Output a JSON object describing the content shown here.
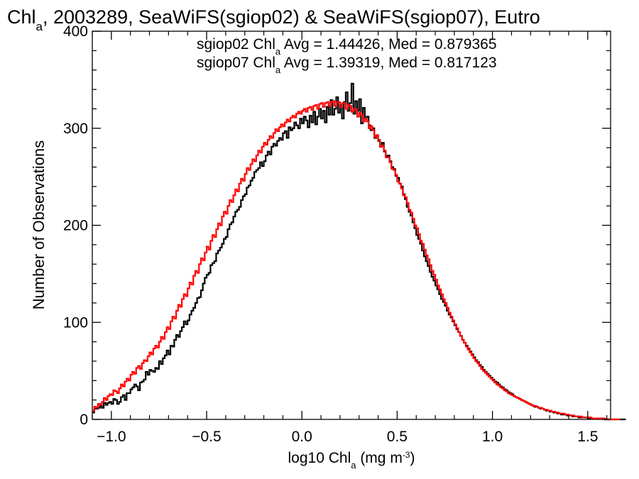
{
  "chart_data": {
    "type": "line",
    "title_parts": [
      "Chl",
      "a",
      ", 2003289, SeaWiFS(sgiop02) & SeaWiFS(sgiop07), Eutro"
    ],
    "xlabel_parts": [
      "log10 Chl",
      "a",
      " (mg m",
      "-3",
      ")"
    ],
    "ylabel": "Number of Observations",
    "xlim": [
      -1.1,
      1.62
    ],
    "ylim": [
      0,
      400
    ],
    "x_ticks": [
      "−1.0",
      "−0.5",
      "0.0",
      "0.5",
      "1.0",
      "1.5"
    ],
    "x_tick_values": [
      -1.0,
      -0.5,
      0.0,
      0.5,
      1.0,
      1.5
    ],
    "y_ticks": [
      "0",
      "100",
      "200",
      "300",
      "400"
    ],
    "y_tick_values": [
      0,
      100,
      200,
      300,
      400
    ],
    "grid": false,
    "annotations": [
      {
        "parts": [
          "sgiop02 Chl",
          "a",
          " Avg = 1.44426, Med = 0.879365"
        ],
        "color": "#000000"
      },
      {
        "parts": [
          "sgiop07 Chl",
          "a",
          " Avg = 1.39319, Med = 0.817123"
        ],
        "color": "#ff0000"
      }
    ],
    "bin_width": 0.01,
    "x_start": -1.1,
    "series": [
      {
        "name": "sgiop02",
        "color": "#000000",
        "values": [
          7,
          11,
          11,
          12,
          14,
          12,
          17,
          15,
          17,
          18,
          16,
          21,
          20,
          16,
          18,
          23,
          25,
          20,
          27,
          27,
          31,
          33,
          36,
          34,
          30,
          38,
          39,
          41,
          49,
          46,
          51,
          50,
          49,
          53,
          52,
          60,
          57,
          63,
          66,
          71,
          67,
          76,
          75,
          82,
          87,
          85,
          91,
          95,
          101,
          98,
          102,
          108,
          112,
          115,
          120,
          125,
          126,
          133,
          140,
          146,
          149,
          151,
          159,
          161,
          163,
          171,
          174,
          177,
          181,
          186,
          188,
          196,
          201,
          203,
          209,
          214,
          216,
          219,
          226,
          230,
          232,
          239,
          241,
          246,
          249,
          255,
          257,
          259,
          265,
          261,
          266,
          272,
          276,
          273,
          281,
          284,
          282,
          287,
          290,
          288,
          295,
          297,
          290,
          301,
          298,
          300,
          306,
          303,
          300,
          310,
          305,
          312,
          308,
          301,
          313,
          306,
          317,
          304,
          312,
          320,
          310,
          318,
          306,
          322,
          314,
          329,
          314,
          320,
          332,
          316,
          324,
          310,
          327,
          337,
          318,
          326,
          346,
          315,
          328,
          318,
          330,
          305,
          321,
          310,
          312,
          303,
          298,
          300,
          290,
          292,
          287,
          281,
          285,
          276,
          271,
          272,
          266,
          260,
          258,
          251,
          249,
          243,
          240,
          232,
          227,
          219,
          214,
          210,
          203,
          197,
          190,
          186,
          181,
          174,
          168,
          163,
          158,
          152,
          147,
          143,
          138,
          134,
          129,
          124,
          121,
          117,
          112,
          108,
          105,
          101,
          97,
          93,
          90,
          86,
          82,
          79,
          76,
          73,
          70,
          67,
          64,
          61,
          59,
          56,
          54,
          51,
          49,
          47,
          45,
          43,
          41,
          39,
          38,
          36,
          34,
          33,
          31,
          30,
          28,
          27,
          26,
          24,
          23,
          22,
          21,
          20,
          19,
          18,
          17,
          16,
          15,
          14,
          13,
          13,
          12,
          11,
          11,
          10,
          9,
          9,
          8,
          8,
          7,
          7,
          6,
          6,
          5,
          5,
          5,
          4,
          4,
          4,
          3,
          3,
          3,
          2,
          2,
          2,
          2,
          2,
          1,
          1,
          1,
          1,
          1,
          1,
          1,
          1,
          1,
          0,
          0,
          0,
          0,
          0,
          0,
          0,
          0,
          0,
          0,
          0
        ]
      },
      {
        "name": "sgiop07",
        "color": "#ff0000",
        "values": [
          9,
          13,
          12,
          16,
          15,
          18,
          22,
          20,
          24,
          26,
          25,
          30,
          29,
          27,
          32,
          36,
          34,
          39,
          42,
          40,
          46,
          49,
          47,
          53,
          55,
          52,
          58,
          61,
          60,
          65,
          69,
          67,
          73,
          76,
          74,
          80,
          85,
          83,
          90,
          95,
          93,
          101,
          106,
          104,
          112,
          118,
          116,
          124,
          129,
          127,
          135,
          141,
          139,
          148,
          153,
          151,
          160,
          166,
          164,
          172,
          178,
          175,
          184,
          190,
          188,
          196,
          202,
          200,
          209,
          214,
          212,
          220,
          226,
          224,
          231,
          237,
          235,
          243,
          248,
          246,
          253,
          259,
          257,
          263,
          268,
          266,
          272,
          277,
          275,
          281,
          285,
          283,
          288,
          292,
          290,
          295,
          299,
          297,
          301,
          304,
          302,
          306,
          309,
          307,
          311,
          313,
          311,
          315,
          317,
          315,
          318,
          320,
          317,
          321,
          322,
          319,
          323,
          324,
          320,
          325,
          326,
          322,
          326,
          327,
          323,
          327,
          328,
          323,
          327,
          327,
          322,
          326,
          326,
          320,
          324,
          323,
          317,
          320,
          319,
          312,
          316,
          314,
          307,
          310,
          307,
          300,
          302,
          298,
          291,
          293,
          288,
          281,
          282,
          277,
          270,
          270,
          265,
          258,
          257,
          252,
          245,
          243,
          238,
          231,
          229,
          223,
          216,
          213,
          207,
          200,
          197,
          191,
          184,
          181,
          175,
          169,
          165,
          159,
          153,
          149,
          144,
          138,
          134,
          129,
          124,
          120,
          115,
          110,
          106,
          102,
          98,
          94,
          90,
          86,
          82,
          79,
          75,
          72,
          69,
          66,
          63,
          60,
          58,
          55,
          52,
          50,
          48,
          46,
          44,
          42,
          40,
          38,
          36,
          35,
          33,
          32,
          30,
          29,
          27,
          26,
          25,
          24,
          23,
          22,
          21,
          20,
          19,
          18,
          17,
          16,
          15,
          14,
          14,
          13,
          12,
          12,
          11,
          10,
          10,
          9,
          9,
          8,
          8,
          7,
          7,
          6,
          6,
          6,
          5,
          5,
          4,
          4,
          4,
          3,
          3,
          3,
          3,
          2,
          2,
          2,
          2,
          2,
          1,
          1,
          1,
          1,
          1,
          1,
          1,
          0,
          0,
          0,
          0,
          0,
          0,
          0,
          0
        ]
      }
    ]
  }
}
